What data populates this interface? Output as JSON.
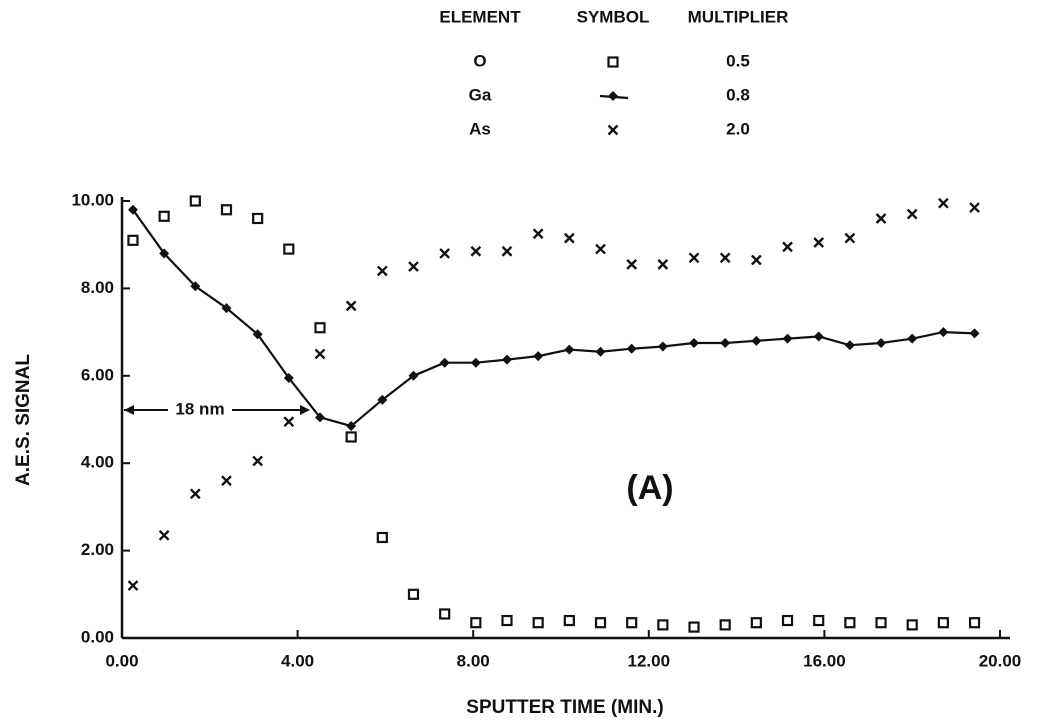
{
  "chart_data": {
    "type": "scatter",
    "xlabel": "SPUTTER TIME (MIN.)",
    "ylabel": "A.E.S. SIGNAL",
    "legend_columns": [
      "ELEMENT",
      "SYMBOL",
      "MULTIPLIER"
    ],
    "annotations": [
      "18 nm",
      "(A)"
    ],
    "xlim": [
      0,
      20
    ],
    "ylim": [
      0,
      10
    ],
    "xticks": [
      {
        "value": 0,
        "label": "0.00"
      },
      {
        "value": 4,
        "label": "4.00"
      },
      {
        "value": 8,
        "label": "8.00"
      },
      {
        "value": 12,
        "label": "12.00"
      },
      {
        "value": 16,
        "label": "16.00"
      },
      {
        "value": 20,
        "label": "20.00"
      }
    ],
    "yticks": [
      {
        "value": 0,
        "label": "0.00"
      },
      {
        "value": 2,
        "label": "2.00"
      },
      {
        "value": 4,
        "label": "4.00"
      },
      {
        "value": 6,
        "label": "6.00"
      },
      {
        "value": 8,
        "label": "8.00"
      },
      {
        "value": 10,
        "label": "10.00"
      }
    ],
    "x": [
      0.25,
      0.96,
      1.67,
      2.38,
      3.09,
      3.8,
      4.51,
      5.22,
      5.93,
      6.64,
      7.35,
      8.06,
      8.77,
      9.48,
      10.19,
      10.9,
      11.61,
      12.32,
      13.03,
      13.74,
      14.45,
      15.16,
      15.87,
      16.58,
      17.29,
      18.0,
      18.71,
      19.42
    ],
    "series": [
      {
        "name": "O",
        "multiplier": "0.5",
        "marker": "square",
        "line": false,
        "color": "#111111",
        "values": [
          9.1,
          9.65,
          10.0,
          9.8,
          9.6,
          8.9,
          7.1,
          4.6,
          2.3,
          1.0,
          0.55,
          0.35,
          0.4,
          0.35,
          0.4,
          0.35,
          0.35,
          0.3,
          0.25,
          0.3,
          0.35,
          0.4,
          0.4,
          0.35,
          0.35,
          0.3,
          0.35,
          0.35
        ]
      },
      {
        "name": "Ga",
        "multiplier": "0.8",
        "marker": "diamond",
        "line": true,
        "color": "#111111",
        "values": [
          9.8,
          8.8,
          8.05,
          7.55,
          6.95,
          5.95,
          5.05,
          4.85,
          5.45,
          6.0,
          6.3,
          6.3,
          6.37,
          6.45,
          6.6,
          6.55,
          6.62,
          6.67,
          6.75,
          6.75,
          6.8,
          6.85,
          6.9,
          6.7,
          6.75,
          6.85,
          7.0,
          6.97
        ]
      },
      {
        "name": "As",
        "multiplier": "2.0",
        "marker": "x",
        "line": false,
        "color": "#111111",
        "values": [
          1.2,
          2.35,
          3.3,
          3.6,
          4.05,
          4.95,
          6.5,
          7.6,
          8.4,
          8.5,
          8.8,
          8.85,
          8.85,
          9.25,
          9.15,
          8.9,
          8.55,
          8.55,
          8.7,
          8.7,
          8.65,
          8.95,
          9.05,
          9.15,
          9.6,
          9.7,
          9.95,
          9.85
        ]
      }
    ]
  }
}
